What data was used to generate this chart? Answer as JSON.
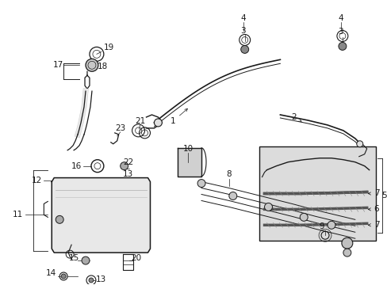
{
  "bg_color": "#ffffff",
  "line_color": "#1a1a1a",
  "fig_width": 4.89,
  "fig_height": 3.6,
  "dpi": 100,
  "box_bg": "#dcdcdc",
  "lw_main": 1.0,
  "lw_thin": 0.6,
  "lw_thick": 1.8,
  "label_fs": 7.5
}
